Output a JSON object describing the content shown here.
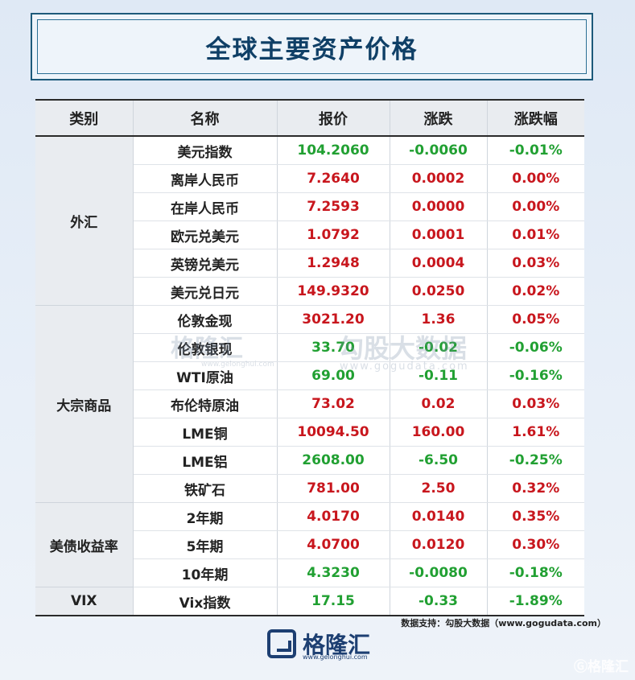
{
  "title": "全球主要资产价格",
  "headers": [
    "类别",
    "名称",
    "报价",
    "涨跌",
    "涨跌幅"
  ],
  "groups": [
    {
      "category": "外汇",
      "rows": [
        {
          "name": "美元指数",
          "price": "104.2060",
          "change": "-0.0060",
          "pct": "-0.01%",
          "dir": "down"
        },
        {
          "name": "离岸人民币",
          "price": "7.2640",
          "change": "0.0002",
          "pct": "0.00%",
          "dir": "up"
        },
        {
          "name": "在岸人民币",
          "price": "7.2593",
          "change": "0.0000",
          "pct": "0.00%",
          "dir": "up"
        },
        {
          "name": "欧元兑美元",
          "price": "1.0792",
          "change": "0.0001",
          "pct": "0.01%",
          "dir": "up"
        },
        {
          "name": "英镑兑美元",
          "price": "1.2948",
          "change": "0.0004",
          "pct": "0.03%",
          "dir": "up"
        },
        {
          "name": "美元兑日元",
          "price": "149.9320",
          "change": "0.0250",
          "pct": "0.02%",
          "dir": "up"
        }
      ]
    },
    {
      "category": "大宗商品",
      "rows": [
        {
          "name": "伦敦金现",
          "price": "3021.20",
          "change": "1.36",
          "pct": "0.05%",
          "dir": "up"
        },
        {
          "name": "伦敦银现",
          "price": "33.70",
          "change": "-0.02",
          "pct": "-0.06%",
          "dir": "down"
        },
        {
          "name": "WTI原油",
          "price": "69.00",
          "change": "-0.11",
          "pct": "-0.16%",
          "dir": "down"
        },
        {
          "name": "布伦特原油",
          "price": "73.02",
          "change": "0.02",
          "pct": "0.03%",
          "dir": "up"
        },
        {
          "name": "LME铜",
          "price": "10094.50",
          "change": "160.00",
          "pct": "1.61%",
          "dir": "up"
        },
        {
          "name": "LME铝",
          "price": "2608.00",
          "change": "-6.50",
          "pct": "-0.25%",
          "dir": "down"
        },
        {
          "name": "铁矿石",
          "price": "781.00",
          "change": "2.50",
          "pct": "0.32%",
          "dir": "up"
        }
      ]
    },
    {
      "category": "美债收益率",
      "rows": [
        {
          "name": "2年期",
          "price": "4.0170",
          "change": "0.0140",
          "pct": "0.35%",
          "dir": "up"
        },
        {
          "name": "5年期",
          "price": "4.0700",
          "change": "0.0120",
          "pct": "0.30%",
          "dir": "up"
        },
        {
          "name": "10年期",
          "price": "4.3230",
          "change": "-0.0080",
          "pct": "-0.18%",
          "dir": "down"
        }
      ]
    },
    {
      "category": "VIX",
      "rows": [
        {
          "name": "Vix指数",
          "price": "17.15",
          "change": "-0.33",
          "pct": "-1.89%",
          "dir": "down"
        }
      ]
    }
  ],
  "watermark": {
    "brand": "格隆汇",
    "brand_url": "www.gelonghui.com",
    "partner": "勾股大数据",
    "partner_url": "www.gogudata.com"
  },
  "source": "数据支持：勾股大数据（www.gogudata.com）",
  "logo": {
    "text": "格隆汇",
    "url": "www.gelonghui.com"
  },
  "corner_mark": "Ⓖ格隆汇",
  "colors": {
    "up": "#c8161d",
    "down": "#21a032",
    "title": "#0f3f66",
    "header_bg": "#e9ecf0"
  }
}
